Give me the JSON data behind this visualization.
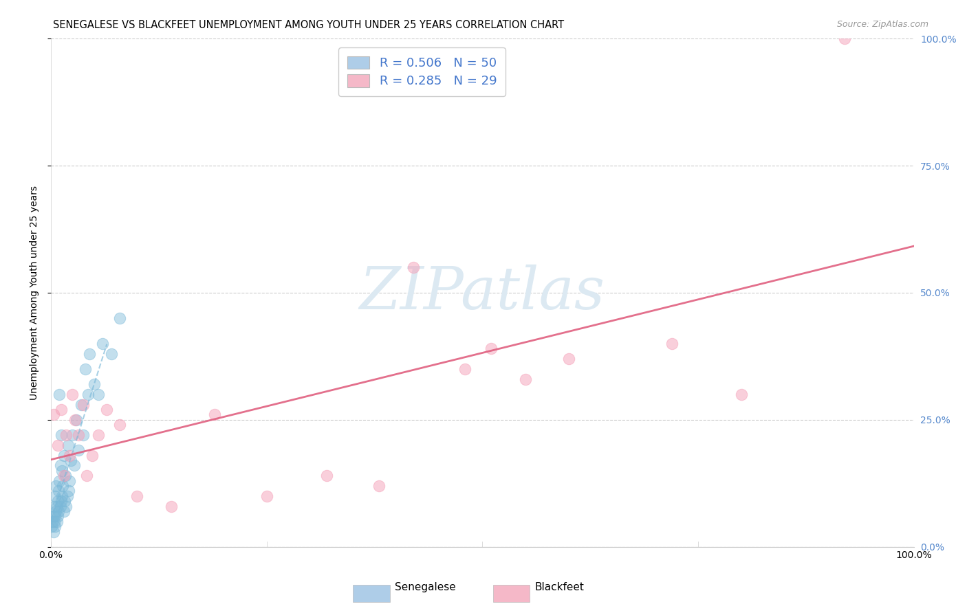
{
  "title": "SENEGALESE VS BLACKFEET UNEMPLOYMENT AMONG YOUTH UNDER 25 YEARS CORRELATION CHART",
  "source": "Source: ZipAtlas.com",
  "ylabel": "Unemployment Among Youth under 25 years",
  "xlim": [
    0.0,
    1.0
  ],
  "ylim": [
    0.0,
    1.0
  ],
  "xticks": [
    0.0,
    0.25,
    0.5,
    0.75,
    1.0
  ],
  "yticks": [
    0.0,
    0.25,
    0.5,
    0.75,
    1.0
  ],
  "xticklabels": [
    "0.0%",
    "",
    "",
    "",
    "100.0%"
  ],
  "right_yticklabels": [
    "0.0%",
    "25.0%",
    "50.0%",
    "75.0%",
    "100.0%"
  ],
  "sen_legend": "R = 0.506   N = 50",
  "blk_legend": "R = 0.285   N = 29",
  "sen_legend_color": "#aecde8",
  "blk_legend_color": "#f5b8c8",
  "senegalese_x": [
    0.001,
    0.002,
    0.003,
    0.003,
    0.004,
    0.004,
    0.005,
    0.005,
    0.005,
    0.006,
    0.006,
    0.007,
    0.007,
    0.008,
    0.008,
    0.009,
    0.009,
    0.01,
    0.01,
    0.011,
    0.011,
    0.012,
    0.012,
    0.013,
    0.013,
    0.014,
    0.015,
    0.015,
    0.016,
    0.017,
    0.018,
    0.019,
    0.02,
    0.021,
    0.022,
    0.023,
    0.025,
    0.027,
    0.03,
    0.032,
    0.035,
    0.038,
    0.04,
    0.043,
    0.045,
    0.05,
    0.055,
    0.06,
    0.07,
    0.08
  ],
  "senegalese_y": [
    0.04,
    0.05,
    0.06,
    0.03,
    0.05,
    0.08,
    0.06,
    0.1,
    0.04,
    0.07,
    0.12,
    0.08,
    0.05,
    0.09,
    0.06,
    0.11,
    0.07,
    0.3,
    0.13,
    0.08,
    0.16,
    0.09,
    0.22,
    0.1,
    0.15,
    0.12,
    0.07,
    0.18,
    0.09,
    0.14,
    0.08,
    0.1,
    0.2,
    0.11,
    0.13,
    0.17,
    0.22,
    0.16,
    0.25,
    0.19,
    0.28,
    0.22,
    0.35,
    0.3,
    0.38,
    0.32,
    0.3,
    0.4,
    0.38,
    0.45
  ],
  "blackfeet_x": [
    0.003,
    0.008,
    0.012,
    0.015,
    0.018,
    0.022,
    0.025,
    0.028,
    0.032,
    0.038,
    0.042,
    0.048,
    0.055,
    0.065,
    0.08,
    0.1,
    0.14,
    0.19,
    0.25,
    0.32,
    0.38,
    0.42,
    0.48,
    0.51,
    0.55,
    0.6,
    0.72,
    0.8,
    0.92
  ],
  "blackfeet_y": [
    0.26,
    0.2,
    0.27,
    0.14,
    0.22,
    0.18,
    0.3,
    0.25,
    0.22,
    0.28,
    0.14,
    0.18,
    0.22,
    0.27,
    0.24,
    0.1,
    0.08,
    0.26,
    0.1,
    0.14,
    0.12,
    0.55,
    0.35,
    0.39,
    0.33,
    0.37,
    0.4,
    0.3,
    1.0
  ],
  "senegalese_color": "#7ab8d8",
  "blackfeet_color": "#f5a0b8",
  "sen_line_color": "#7ab8d8",
  "blk_line_color": "#e06080",
  "watermark_text": "ZIPatlas",
  "watermark_color": "#dce9f2",
  "grid_color": "#cccccc",
  "bg_color": "#ffffff",
  "title_fontsize": 10.5,
  "ylabel_fontsize": 10,
  "tick_fontsize": 10,
  "legend_fontsize": 13,
  "source_fontsize": 9,
  "right_tick_color": "#5588cc"
}
